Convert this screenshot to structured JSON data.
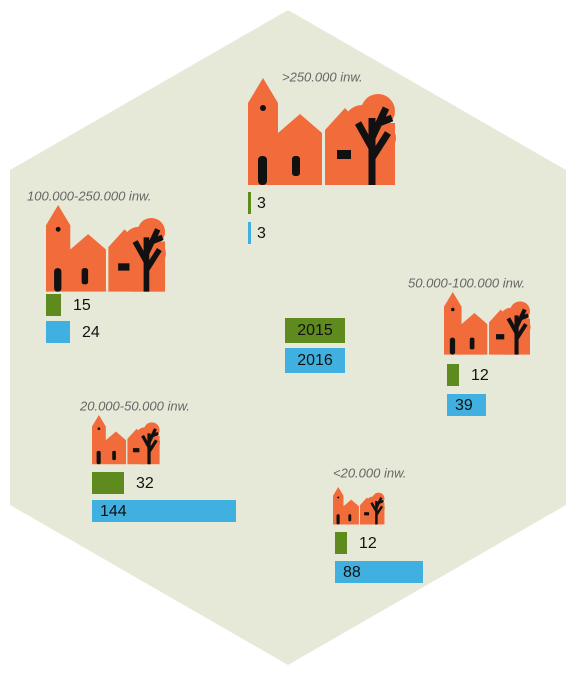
{
  "chart_data": {
    "type": "bar",
    "categories": [
      ">250.000 inw.",
      "100.000-250.000 inw.",
      "50.000-100.000 inw.",
      "20.000-50.000 inw.",
      "<20.000 inw."
    ],
    "series": [
      {
        "name": "2015",
        "color": "#5e8a1e",
        "values": [
          3,
          15,
          12,
          32,
          12
        ]
      },
      {
        "name": "2016",
        "color": "#3fb0df",
        "values": [
          3,
          24,
          39,
          144,
          88
        ]
      }
    ]
  }
}
